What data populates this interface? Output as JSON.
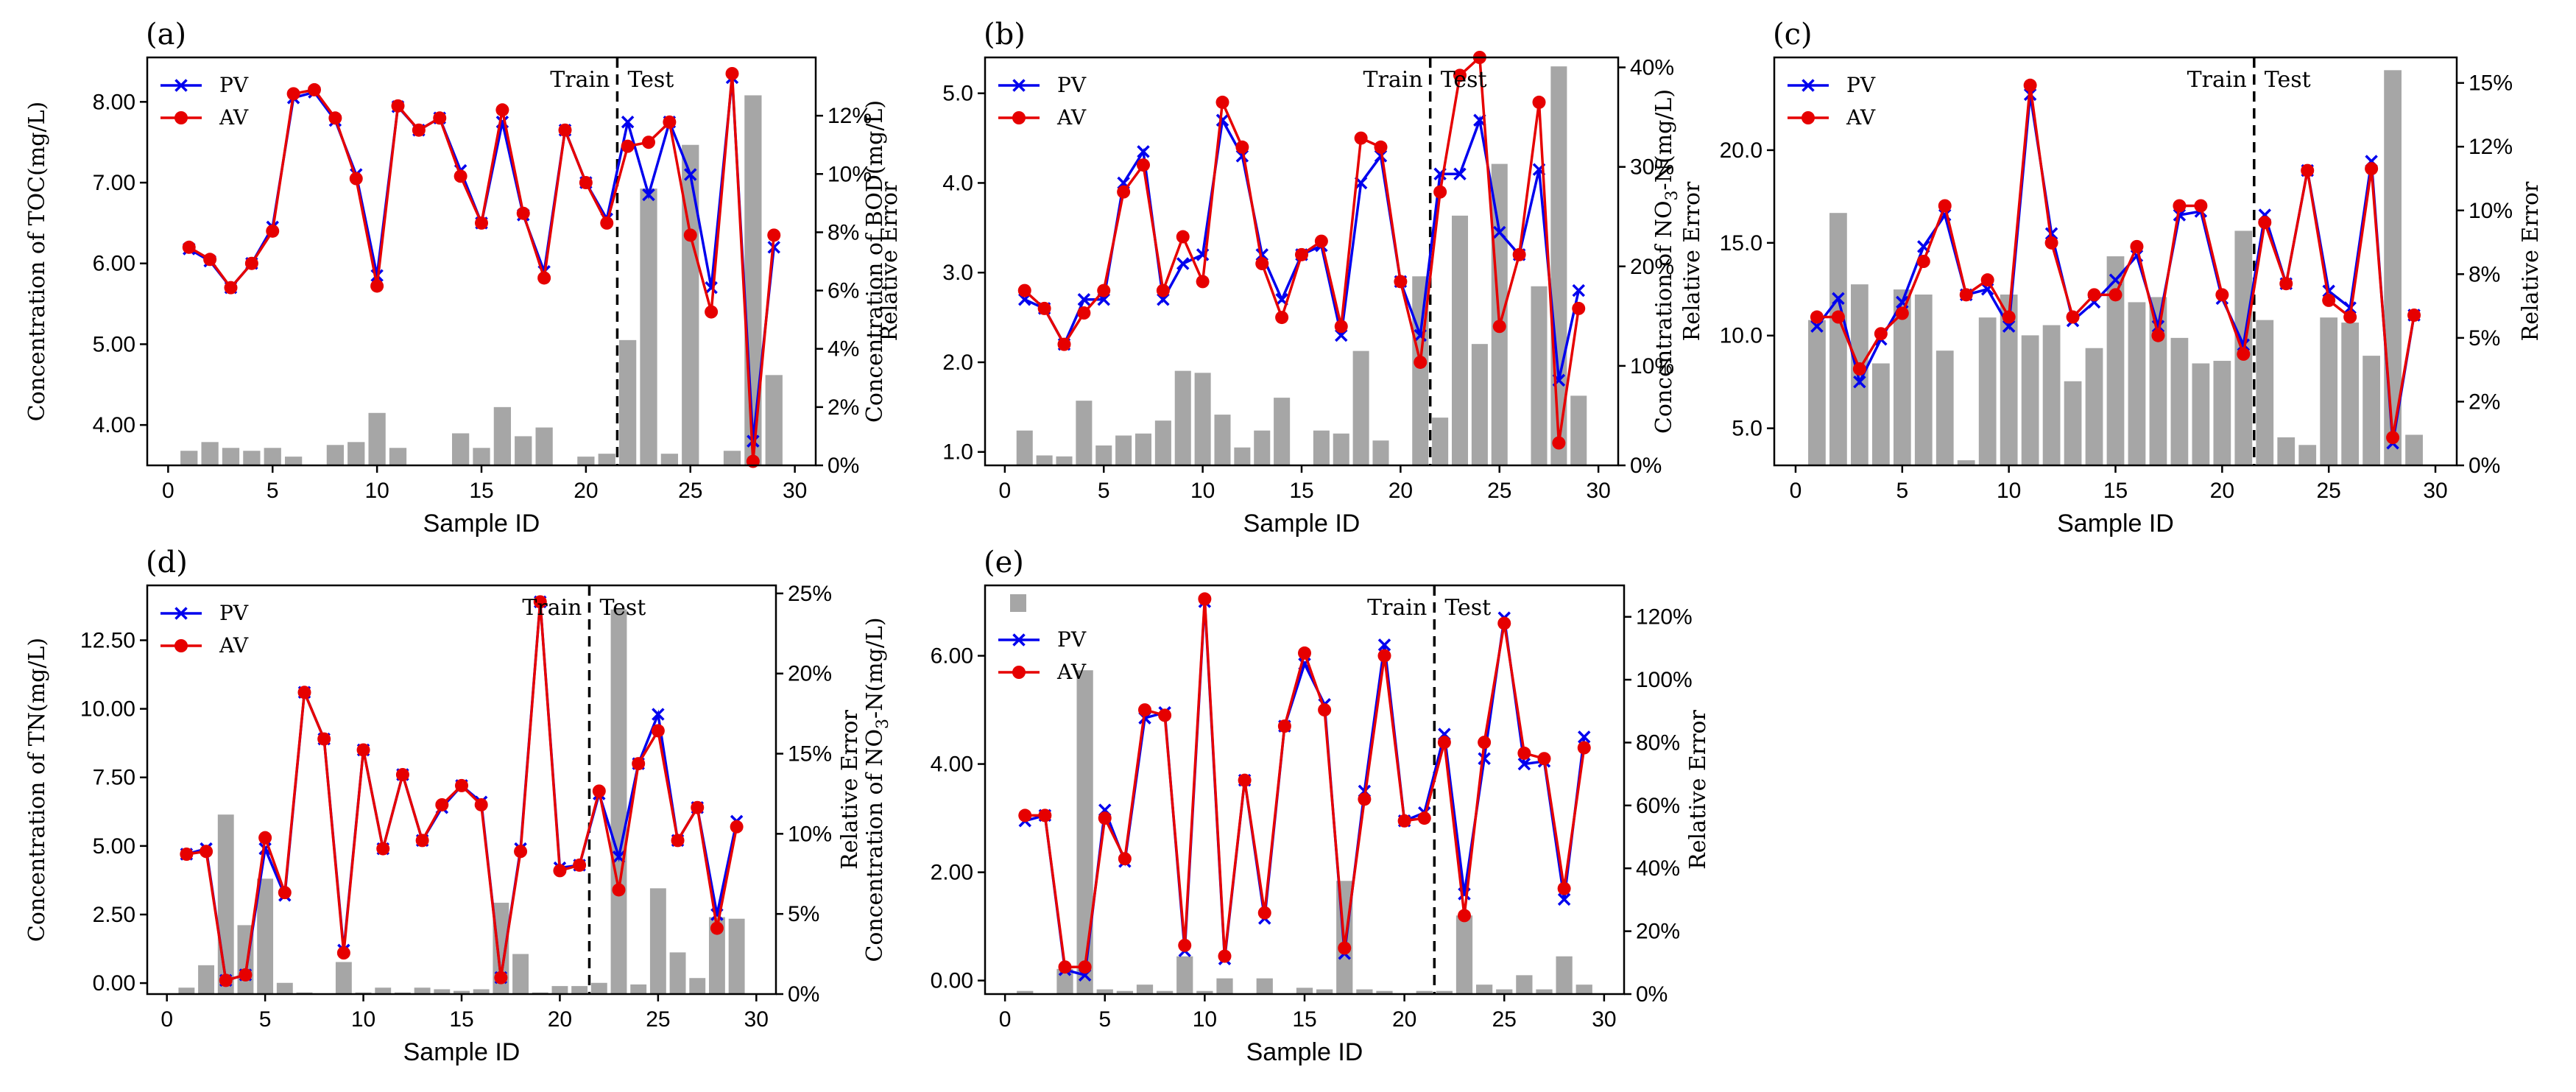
{
  "figure": {
    "panel_labels": [
      "(a)",
      "(b)",
      "(c)",
      "(d)",
      "(e)"
    ],
    "x_label": "Sample ID",
    "y2_label": "Relative Error",
    "legend_pv": "PV",
    "legend_av": "AV",
    "train_label": "Train",
    "test_label": "Test",
    "colors": {
      "pv": "#0000ee",
      "av": "#e60000",
      "bar": "#a6a6a6"
    }
  },
  "chart_data": [
    {
      "id": "a",
      "type": "line+bar",
      "title": "(a)",
      "ylabel": "Concentration of TOC(mg/L)",
      "ylabel_main": "Concentration of TOC(mg/L)",
      "ylabel_sub": "",
      "ylabel_rest": "",
      "xlabel": "Sample ID",
      "y2label": "Relative Error",
      "xlim": [
        -1,
        31
      ],
      "ylim": [
        3.5,
        8.55
      ],
      "y2lim": [
        0,
        14
      ],
      "xticks": [
        0,
        5,
        10,
        15,
        20,
        25,
        30
      ],
      "yticks": [
        4,
        5,
        6,
        7,
        8
      ],
      "ytick_labels": [
        "4.00",
        "5.00",
        "6.00",
        "7.00",
        "8.00"
      ],
      "y2ticks": [
        0,
        2,
        4,
        6,
        8,
        10,
        12
      ],
      "y2tick_labels": [
        "0%",
        "2%",
        "4%",
        "6%",
        "8%",
        "10%",
        "12%"
      ],
      "split": 21.5,
      "x": [
        1,
        2,
        3,
        4,
        5,
        6,
        7,
        8,
        9,
        10,
        11,
        12,
        13,
        14,
        15,
        16,
        17,
        18,
        19,
        20,
        21,
        22,
        23,
        24,
        25,
        26,
        27,
        28,
        29
      ],
      "pv": [
        6.18,
        6.03,
        5.7,
        6.0,
        6.45,
        8.05,
        8.12,
        7.77,
        7.1,
        5.85,
        7.94,
        7.65,
        7.8,
        7.15,
        6.5,
        7.75,
        6.6,
        5.9,
        7.65,
        7.0,
        6.55,
        7.75,
        6.85,
        7.75,
        7.1,
        5.7,
        8.3,
        3.8,
        6.2
      ],
      "av": [
        6.2,
        6.05,
        5.7,
        6.0,
        6.4,
        8.1,
        8.15,
        7.8,
        7.05,
        5.72,
        7.95,
        7.65,
        7.8,
        7.08,
        6.5,
        7.9,
        6.62,
        5.82,
        7.65,
        7.0,
        6.5,
        7.45,
        7.5,
        7.75,
        6.35,
        5.4,
        8.35,
        3.55,
        6.35
      ],
      "rel_error": [
        0.5,
        0.8,
        0.6,
        0.5,
        0.6,
        0.3,
        0.0,
        0.7,
        0.8,
        1.8,
        0.6,
        0.0,
        0.0,
        1.1,
        0.6,
        2.0,
        1.0,
        1.3,
        0.0,
        0.3,
        0.4,
        4.3,
        9.5,
        0.4,
        11.0,
        0.0,
        0.5,
        12.7,
        3.1
      ]
    },
    {
      "id": "b",
      "type": "line+bar",
      "title": "(b)",
      "ylabel": "Concentration of BOD(mg/L)",
      "ylabel_main": "Concentration of BOD(mg/L)",
      "ylabel_sub": "",
      "ylabel_rest": "",
      "xlabel": "Sample ID",
      "y2label": "Relative Error",
      "xlim": [
        -1,
        31
      ],
      "ylim": [
        0.85,
        5.4
      ],
      "y2lim": [
        0,
        41
      ],
      "xticks": [
        0,
        5,
        10,
        15,
        20,
        25,
        30
      ],
      "yticks": [
        1,
        2,
        3,
        4,
        5
      ],
      "ytick_labels": [
        "1.0",
        "2.0",
        "3.0",
        "4.0",
        "5.0"
      ],
      "y2ticks": [
        0,
        10,
        20,
        30,
        40
      ],
      "y2tick_labels": [
        "0%",
        "10%",
        "20%",
        "30%",
        "40%"
      ],
      "split": 21.5,
      "x": [
        1,
        2,
        3,
        4,
        5,
        6,
        7,
        8,
        9,
        10,
        11,
        12,
        13,
        14,
        15,
        16,
        17,
        18,
        19,
        20,
        21,
        22,
        23,
        24,
        25,
        26,
        27,
        28,
        29
      ],
      "pv": [
        2.7,
        2.6,
        2.2,
        2.7,
        2.7,
        4.0,
        4.35,
        2.7,
        3.1,
        3.2,
        4.7,
        4.3,
        3.2,
        2.7,
        3.2,
        3.3,
        2.3,
        4.0,
        4.3,
        2.9,
        2.3,
        4.1,
        4.1,
        4.7,
        3.45,
        3.2,
        4.15,
        1.8,
        2.8
      ],
      "av": [
        2.8,
        2.6,
        2.2,
        2.55,
        2.8,
        3.9,
        4.2,
        2.8,
        3.4,
        2.9,
        4.9,
        4.4,
        3.1,
        2.5,
        3.2,
        3.35,
        2.4,
        4.5,
        4.4,
        2.9,
        2.0,
        3.9,
        5.2,
        5.4,
        2.4,
        3.2,
        4.9,
        1.1,
        2.6
      ],
      "rel_error": [
        3.5,
        1.0,
        0.9,
        6.5,
        2.0,
        3.0,
        3.2,
        4.5,
        9.5,
        9.3,
        5.1,
        1.8,
        3.5,
        6.8,
        0.0,
        3.5,
        3.2,
        11.5,
        2.5,
        0.0,
        19.0,
        4.8,
        25.1,
        12.2,
        30.3,
        0.0,
        18.0,
        40.1,
        7.0
      ]
    },
    {
      "id": "c",
      "type": "line+bar",
      "title": "(c)",
      "ylabel": "Concentration of NO3-N(mg/L)",
      "ylabel_main": "Concentration of NO",
      "ylabel_sub": "3",
      "ylabel_rest": "-N(mg/L)",
      "xlabel": "Sample ID",
      "y2label": "Relative Error",
      "xlim": [
        -1,
        31
      ],
      "ylim": [
        3.0,
        25.0
      ],
      "y2lim": [
        0,
        16
      ],
      "xticks": [
        0,
        5,
        10,
        15,
        20,
        25,
        30
      ],
      "yticks": [
        5,
        10,
        15,
        20
      ],
      "ytick_labels": [
        "5.0",
        "10.0",
        "15.0",
        "20.0"
      ],
      "y2ticks": [
        0,
        2.5,
        5,
        7.5,
        10,
        12.5,
        15
      ],
      "y2tick_labels": [
        "0%",
        "2%",
        "5%",
        "8%",
        "10%",
        "12%",
        "15%"
      ],
      "split": 21.5,
      "x": [
        1,
        2,
        3,
        4,
        5,
        6,
        7,
        8,
        9,
        10,
        11,
        12,
        13,
        14,
        15,
        16,
        17,
        18,
        19,
        20,
        21,
        22,
        23,
        24,
        25,
        26,
        27,
        28,
        29
      ],
      "pv": [
        10.5,
        12.0,
        7.5,
        9.8,
        11.8,
        14.8,
        16.5,
        12.2,
        12.5,
        10.5,
        23.0,
        15.5,
        10.8,
        11.8,
        13.0,
        14.3,
        10.5,
        16.5,
        16.7,
        12.0,
        9.5,
        16.5,
        12.8,
        18.9,
        12.4,
        11.5,
        19.4,
        4.2,
        11.1
      ],
      "av": [
        11.0,
        11.0,
        8.2,
        10.1,
        11.2,
        14.0,
        17.0,
        12.2,
        13.0,
        11.0,
        23.5,
        15.0,
        11.0,
        12.2,
        12.2,
        14.8,
        10.0,
        17.0,
        17.0,
        12.2,
        9.0,
        16.1,
        12.8,
        18.9,
        11.9,
        11.0,
        19.0,
        4.5,
        11.1
      ],
      "rel_error": [
        5.7,
        9.9,
        7.1,
        4.0,
        6.9,
        6.7,
        4.5,
        0.2,
        5.8,
        6.7,
        5.1,
        5.5,
        3.3,
        4.6,
        8.2,
        6.4,
        6.6,
        5.0,
        4.0,
        4.1,
        9.2,
        5.7,
        1.1,
        0.8,
        5.8,
        5.6,
        4.3,
        15.5,
        1.2
      ]
    },
    {
      "id": "d",
      "type": "line+bar",
      "title": "(d)",
      "ylabel": "Concentration of TN(mg/L)",
      "ylabel_main": "Concentration of TN(mg/L)",
      "ylabel_sub": "",
      "ylabel_rest": "",
      "xlabel": "Sample ID",
      "y2label": "Relative Error",
      "xlim": [
        -1,
        31
      ],
      "ylim": [
        -0.4,
        14.5
      ],
      "y2lim": [
        0,
        25.5
      ],
      "xticks": [
        0,
        5,
        10,
        15,
        20,
        25,
        30
      ],
      "yticks": [
        0,
        2.5,
        5,
        7.5,
        10,
        12.5
      ],
      "ytick_labels": [
        "0.00",
        "2.50",
        "5.00",
        "7.50",
        "10.00",
        "12.50"
      ],
      "y2ticks": [
        0,
        5,
        10,
        15,
        20,
        25
      ],
      "y2tick_labels": [
        "0%",
        "5%",
        "10%",
        "15%",
        "20%",
        "25%"
      ],
      "split": 21.5,
      "x": [
        1,
        2,
        3,
        4,
        5,
        6,
        7,
        8,
        9,
        10,
        11,
        12,
        13,
        14,
        15,
        16,
        17,
        18,
        19,
        20,
        21,
        22,
        23,
        24,
        25,
        26,
        27,
        28,
        29
      ],
      "pv": [
        4.7,
        4.9,
        0.1,
        0.3,
        4.9,
        3.2,
        10.6,
        8.9,
        1.2,
        8.5,
        4.9,
        7.6,
        5.2,
        6.4,
        7.2,
        6.6,
        0.2,
        4.9,
        13.9,
        4.2,
        4.3,
        6.9,
        4.6,
        8.0,
        9.8,
        5.2,
        6.4,
        2.5,
        5.9
      ],
      "av": [
        4.7,
        4.8,
        0.1,
        0.3,
        5.3,
        3.3,
        10.6,
        8.9,
        1.1,
        8.5,
        4.9,
        7.6,
        5.2,
        6.5,
        7.2,
        6.5,
        0.2,
        4.8,
        13.9,
        4.1,
        4.3,
        7.0,
        3.4,
        8.0,
        9.2,
        5.2,
        6.4,
        2.0,
        5.7
      ],
      "rel_error": [
        0.4,
        1.8,
        11.2,
        4.3,
        7.2,
        0.7,
        0.1,
        0.0,
        2.0,
        0.1,
        0.4,
        0.1,
        0.4,
        0.3,
        0.2,
        0.3,
        5.7,
        2.5,
        0.1,
        0.5,
        0.5,
        0.7,
        24.0,
        0.6,
        6.6,
        2.6,
        1.0,
        4.8,
        4.7
      ]
    },
    {
      "id": "e",
      "type": "line+bar",
      "title": "(e)",
      "ylabel": "Concentration of NO3-N(mg/L)",
      "ylabel_main": "Concentration of NO",
      "ylabel_sub": "3",
      "ylabel_rest": "-N(mg/L)",
      "xlabel": "Sample ID",
      "y2label": "Relative Error",
      "xlim": [
        -1,
        31
      ],
      "ylim": [
        -0.25,
        7.3
      ],
      "y2lim": [
        0,
        130
      ],
      "xticks": [
        0,
        5,
        10,
        15,
        20,
        25,
        30
      ],
      "yticks": [
        0,
        2,
        4,
        6
      ],
      "ytick_labels": [
        "0.00",
        "2.00",
        "4.00",
        "6.00"
      ],
      "y2ticks": [
        0,
        20,
        40,
        60,
        80,
        100,
        120
      ],
      "y2tick_labels": [
        "0%",
        "20%",
        "40%",
        "60%",
        "80%",
        "100%",
        "120%"
      ],
      "split": 21.5,
      "x": [
        1,
        2,
        3,
        4,
        5,
        6,
        7,
        8,
        9,
        10,
        11,
        12,
        13,
        14,
        15,
        16,
        17,
        18,
        19,
        20,
        21,
        22,
        23,
        24,
        25,
        26,
        27,
        28,
        29
      ],
      "pv": [
        2.95,
        3.05,
        0.2,
        0.1,
        3.15,
        2.2,
        4.85,
        4.95,
        0.55,
        7.0,
        0.4,
        3.7,
        1.15,
        4.7,
        5.85,
        5.1,
        0.5,
        3.5,
        6.2,
        2.95,
        3.1,
        4.55,
        1.6,
        4.1,
        6.7,
        4.0,
        4.05,
        1.5,
        4.5
      ],
      "av": [
        3.05,
        3.05,
        0.25,
        0.25,
        3.0,
        2.25,
        5.0,
        4.9,
        0.65,
        7.05,
        0.45,
        3.7,
        1.25,
        4.7,
        6.05,
        5.0,
        0.6,
        3.35,
        6.0,
        2.95,
        3.0,
        4.4,
        1.2,
        4.4,
        6.6,
        4.2,
        4.1,
        1.7,
        4.3
      ],
      "rel_error": [
        1.0,
        0.0,
        8.0,
        103.0,
        1.5,
        1.0,
        3.0,
        1.0,
        12.0,
        1.0,
        5.0,
        0.0,
        5.0,
        0.0,
        2.0,
        1.5,
        36.0,
        1.5,
        1.0,
        0.0,
        1.0,
        1.0,
        25.0,
        3.0,
        1.5,
        6.0,
        1.5,
        12.0,
        3.0
      ]
    }
  ]
}
